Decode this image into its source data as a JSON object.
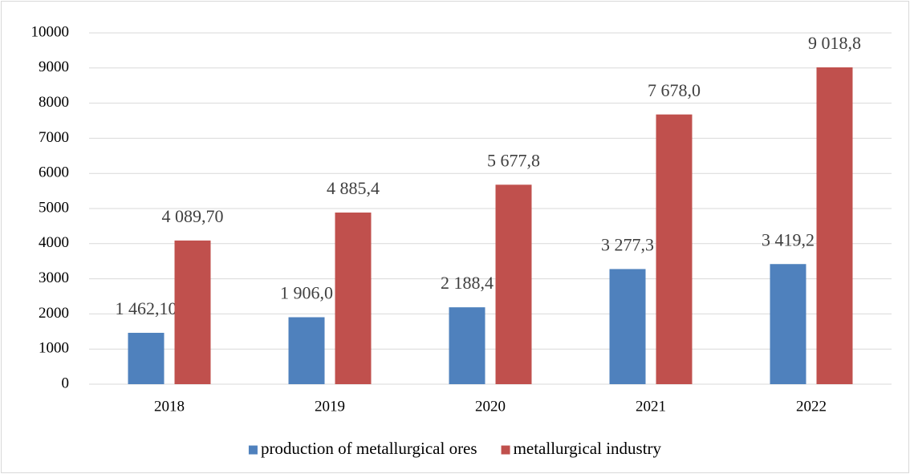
{
  "chart_data": {
    "type": "bar",
    "categories": [
      "2018",
      "2019",
      "2020",
      "2021",
      "2022"
    ],
    "series": [
      {
        "name": "production of metallurgical ores",
        "color": "#4f81bd",
        "values": [
          1462.1,
          1906.0,
          2188.4,
          3277.3,
          3419.2
        ],
        "value_labels": [
          "1 462,10",
          "1 906,0",
          "2 188,4",
          "3 277,3",
          "3 419,2"
        ]
      },
      {
        "name": "metallurgical industry",
        "color": "#c0504d",
        "values": [
          4089.7,
          4885.4,
          5677.8,
          7678.0,
          9018.8
        ],
        "value_labels": [
          "4 089,70",
          "4 885,4",
          "5 677,8",
          "7 678,0",
          "9 018,8"
        ]
      }
    ],
    "ylim": [
      0,
      10000
    ],
    "yticks": [
      0,
      1000,
      2000,
      3000,
      4000,
      5000,
      6000,
      7000,
      8000,
      9000,
      10000
    ],
    "grid": true,
    "legend": "bottom"
  }
}
